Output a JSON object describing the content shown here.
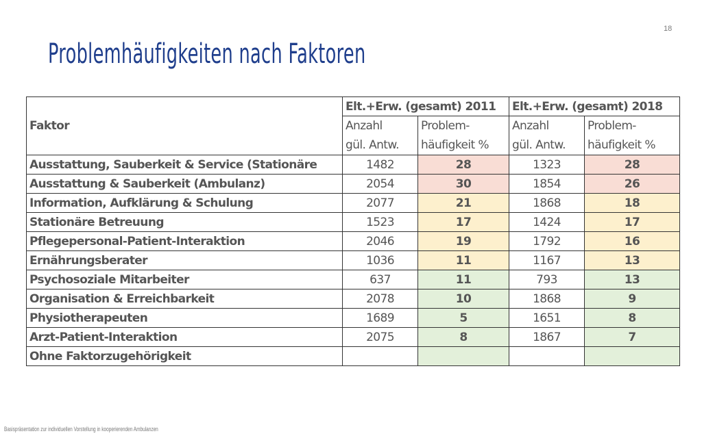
{
  "page_number": "18",
  "title": "Problemhäufigkeiten nach Faktoren",
  "footer": "Basispräsentation zur individuellen Vorstellung in kooperierenden Ambulanzen",
  "colors": {
    "title": "#1f3e8c",
    "high": "#f9ddd5",
    "medium": "#fdf0cd",
    "low": "#e3f0da"
  },
  "table": {
    "header": {
      "faktor": "Faktor",
      "group_2011": "Elt.+Erw. (gesamt) 2011",
      "group_2018": "Elt.+Erw. (gesamt) 2018",
      "anzahl_line1": "Anzahl",
      "anzahl_line2": "gül. Antw.",
      "problem_line1": "Problem-",
      "problem_line2": "häufigkeit %"
    },
    "rows": [
      {
        "label": "Ausstattung, Sauberkeit & Service (Stationäre",
        "n2011": "1482",
        "p2011": "28",
        "n2018": "1323",
        "p2018": "28",
        "c2011": "high",
        "c2018": "high"
      },
      {
        "label": "Ausstattung & Sauberkeit (Ambulanz)",
        "n2011": "2054",
        "p2011": "30",
        "n2018": "1854",
        "p2018": "26",
        "c2011": "high",
        "c2018": "high"
      },
      {
        "label": "Information, Aufklärung & Schulung",
        "n2011": "2077",
        "p2011": "21",
        "n2018": "1868",
        "p2018": "18",
        "c2011": "medium",
        "c2018": "medium"
      },
      {
        "label": "Stationäre Betreuung",
        "n2011": "1523",
        "p2011": "17",
        "n2018": "1424",
        "p2018": "17",
        "c2011": "medium",
        "c2018": "medium"
      },
      {
        "label": "Pflegepersonal-Patient-Interaktion",
        "n2011": "2046",
        "p2011": "19",
        "n2018": "1792",
        "p2018": "16",
        "c2011": "medium",
        "c2018": "medium"
      },
      {
        "label": "Ernährungsberater",
        "n2011": "1036",
        "p2011": "11",
        "n2018": "1167",
        "p2018": "13",
        "c2011": "medium",
        "c2018": "medium"
      },
      {
        "label": "Psychosoziale Mitarbeiter",
        "n2011": "637",
        "p2011": "11",
        "n2018": "793",
        "p2018": "13",
        "c2011": "low",
        "c2018": "low"
      },
      {
        "label": "Organisation & Erreichbarkeit",
        "n2011": "2078",
        "p2011": "10",
        "n2018": "1868",
        "p2018": "9",
        "c2011": "low",
        "c2018": "low"
      },
      {
        "label": "Physiotherapeuten",
        "n2011": "1689",
        "p2011": "5",
        "n2018": "1651",
        "p2018": "8",
        "c2011": "low",
        "c2018": "low"
      },
      {
        "label": "Arzt-Patient-Interaktion",
        "n2011": "2075",
        "p2011": "8",
        "n2018": "1867",
        "p2018": "7",
        "c2011": "low",
        "c2018": "low"
      },
      {
        "label": "Ohne Faktorzugehörigkeit",
        "n2011": "",
        "p2011": "",
        "n2018": "",
        "p2018": "",
        "c2011": "low",
        "c2018": "low"
      }
    ]
  }
}
